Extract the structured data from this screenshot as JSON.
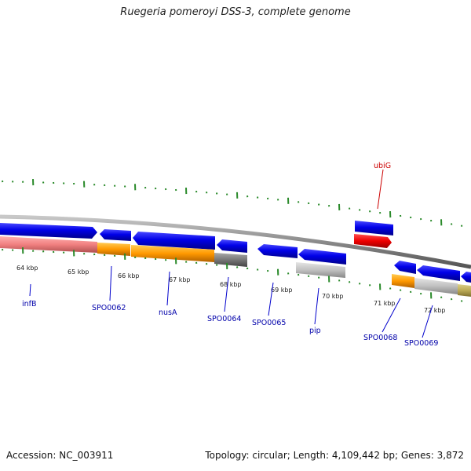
{
  "title": "Ruegeria pomeroyi DSS-3, complete genome",
  "footer": {
    "accession": "Accession: NC_003911",
    "summary": "Topology: circular; Length: 4,109,442 bp; Genes: 3,872"
  },
  "colors": {
    "forward_gene": "#0000e0",
    "reverse_gene": "#0000e0",
    "highlight_gene": "#ee0000",
    "backbone": "#8a8a8a",
    "ticks": "#2a8a2a",
    "label_blue": "#0000aa",
    "label_red": "#cc0000",
    "cds_salmon": "#f08080",
    "cds_orange": "#ff9900",
    "cds_gray": "#777777",
    "cds_lightgray": "#bbbbbb",
    "cds_olive": "#bbaa55"
  },
  "kbp_labels": [
    "64 kbp",
    "65 kbp",
    "66 kbp",
    "67 kbp",
    "68 kbp",
    "69 kbp",
    "70 kbp",
    "71 kbp",
    "72 kbp"
  ],
  "gene_labels": {
    "infB": "infB",
    "SPO0062": "SPO0062",
    "nusA": "nusA",
    "SPO0064": "SPO0064",
    "SPO0065": "SPO0065",
    "pip": "pip",
    "SPO0068": "SPO0068",
    "SPO0069": "SPO0069",
    "ubiG": "ubiG"
  }
}
